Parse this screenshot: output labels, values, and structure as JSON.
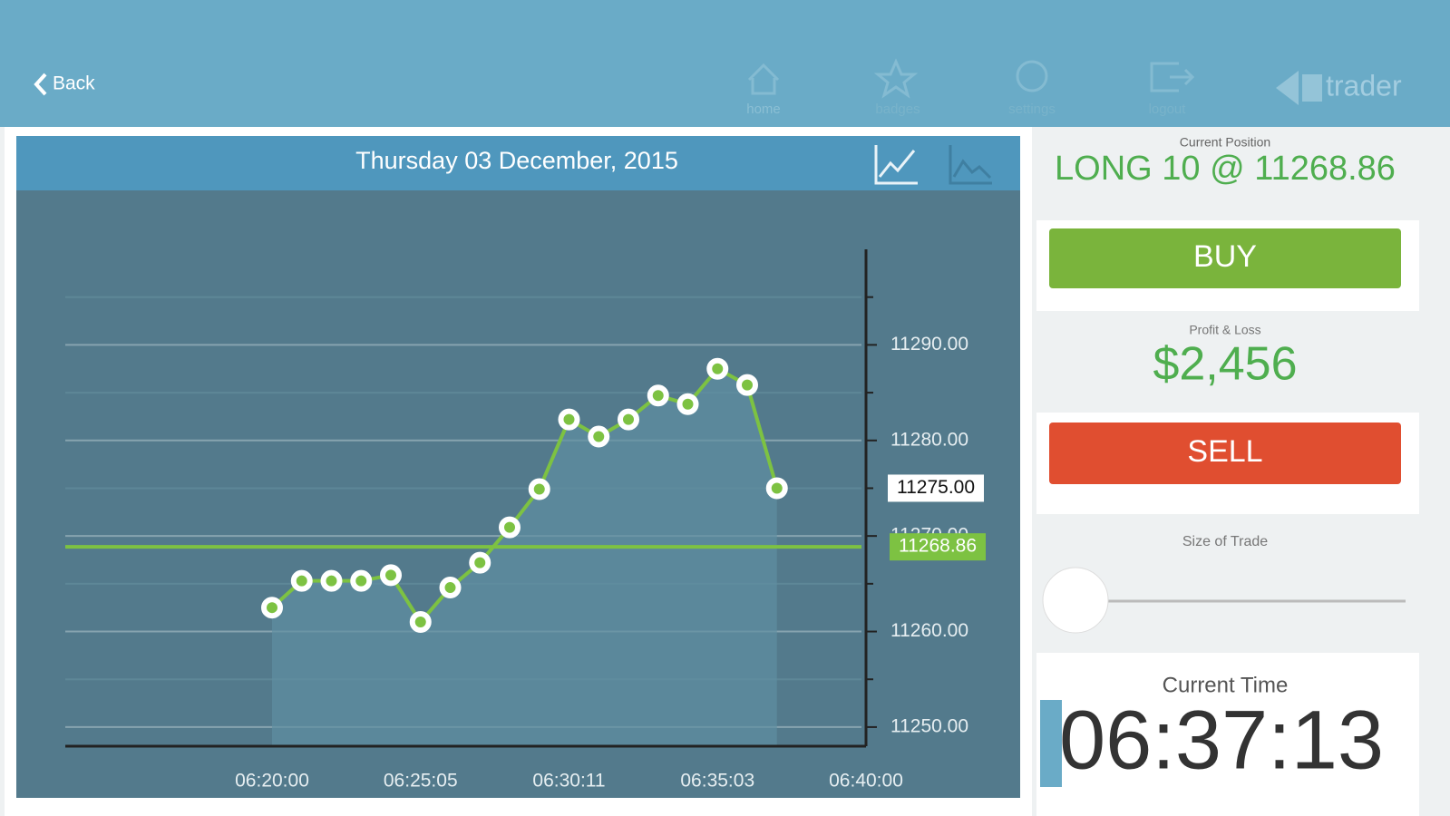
{
  "header": {
    "back": "Back",
    "nav": [
      "home",
      "badges",
      "settings",
      "logout"
    ],
    "logo": "trader"
  },
  "chart_panel": {
    "date": "Thursday 03 December, 2015"
  },
  "chart_data": {
    "type": "line",
    "categories": [
      "06:20:00",
      null,
      null,
      null,
      null,
      "06:25:05",
      null,
      null,
      null,
      null,
      "06:30:11",
      null,
      null,
      null,
      null,
      "06:35:03",
      null,
      null,
      null,
      null,
      "06:40:00"
    ],
    "values": [
      11262.5,
      11265.3,
      11265.3,
      11265.3,
      11265.9,
      11261.0,
      11264.6,
      11267.2,
      11270.9,
      11274.9,
      11282.2,
      11280.4,
      11282.2,
      11284.7,
      11283.8,
      11287.5,
      11285.8,
      11275.0,
      null,
      null,
      null
    ],
    "color": "#7dc242",
    "ylim": [
      11248,
      11300
    ],
    "yticks": [
      {
        "value": 11250,
        "label": "11250.00"
      },
      {
        "value": 11260,
        "label": "11260.00"
      },
      {
        "value": 11270,
        "label": "11270.00"
      },
      {
        "value": 11280,
        "label": "11280.00"
      },
      {
        "value": 11290,
        "label": "11290.00"
      }
    ],
    "minor_yticks": [
      11255,
      11265,
      11275,
      11285,
      11295
    ],
    "grid": true,
    "current_price": {
      "value": 11275,
      "label": "11275.00"
    },
    "position_line": {
      "value": 11268.86,
      "label": "11268.86"
    }
  },
  "sidebar": {
    "position_label": "Current Position",
    "position": "LONG 10 @ 11268.86",
    "buy": "BUY",
    "pnl_label": "Profit & Loss",
    "pnl": "$2,456",
    "sell": "SELL",
    "size_label": "Size of Trade",
    "time_label": "Current Time",
    "time": "06:37:13"
  }
}
